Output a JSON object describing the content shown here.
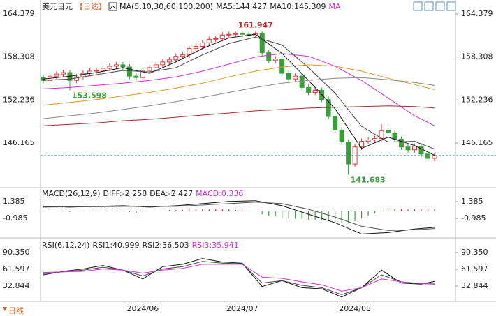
{
  "chart_data": [
    {
      "type": "candlestick",
      "header": [
        {
          "text": "美元日元",
          "color": "#222"
        },
        {
          "text": "【日线】",
          "color": "#e06020"
        },
        {
          "text": "MA(5,10,30,60,100,200)",
          "color": "#222"
        },
        {
          "text": "MA5:144.427",
          "color": "#222"
        },
        {
          "text": "MA10:145.309",
          "color": "#222"
        },
        {
          "text": "MA",
          "color": "#cc33cc"
        }
      ],
      "footer": "日线",
      "categories": [
        null,
        null,
        null,
        null,
        null,
        null,
        null,
        null,
        null,
        null,
        null,
        null,
        null,
        null,
        null,
        "2024/06",
        null,
        null,
        null,
        null,
        null,
        null,
        null,
        null,
        null,
        null,
        null,
        null,
        null,
        null,
        "2024/07",
        null,
        null,
        null,
        null,
        null,
        null,
        null,
        null,
        null,
        null,
        null,
        null,
        null,
        null,
        null,
        null,
        "2024/08",
        null,
        null,
        null,
        null,
        null,
        null,
        null,
        null,
        null,
        null,
        null,
        null
      ],
      "open": [
        155.4,
        155.0,
        155.6,
        155.9,
        156.1,
        155.0,
        155.5,
        156.0,
        156.3,
        156.4,
        156.7,
        157.0,
        157.2,
        156.9,
        155.6,
        155.4,
        156.4,
        156.8,
        157.2,
        157.6,
        157.9,
        158.4,
        158.6,
        159.5,
        159.8,
        160.3,
        160.8,
        160.9,
        161.4,
        161.5,
        161.6,
        161.5,
        161.3,
        161.6,
        158.9,
        157.8,
        158.0,
        156.0,
        155.2,
        155.6,
        154.0,
        153.3,
        153.6,
        152.3,
        149.9,
        148.0,
        146.3,
        143.2,
        145.6,
        146.4,
        146.6,
        146.8,
        147.9,
        147.6,
        146.7,
        145.6,
        145.2,
        145.7,
        144.6,
        144.0
      ],
      "high": [
        155.8,
        156.0,
        156.3,
        156.5,
        156.5,
        155.9,
        156.4,
        156.7,
        156.8,
        157.1,
        157.4,
        157.6,
        157.6,
        157.3,
        156.0,
        156.8,
        157.2,
        157.6,
        158.0,
        158.3,
        158.8,
        159.0,
        159.9,
        160.2,
        160.7,
        161.2,
        161.3,
        161.8,
        161.9,
        161.9,
        161.947,
        161.9,
        161.9,
        161.9,
        159.3,
        158.4,
        158.4,
        156.4,
        156.0,
        156.0,
        154.4,
        154.0,
        154.0,
        152.7,
        150.3,
        148.4,
        146.7,
        146.0,
        146.8,
        147.0,
        147.2,
        148.8,
        148.3,
        148.0,
        147.1,
        146.0,
        146.1,
        146.1,
        145.0,
        144.8
      ],
      "low": [
        154.6,
        154.6,
        155.2,
        155.5,
        153.598,
        154.6,
        155.1,
        155.6,
        155.9,
        156.0,
        156.3,
        156.6,
        156.5,
        155.2,
        155.0,
        155.0,
        156.0,
        156.4,
        156.8,
        157.2,
        157.5,
        158.0,
        158.2,
        159.1,
        159.4,
        159.9,
        160.4,
        160.5,
        161.0,
        161.1,
        161.1,
        160.9,
        160.9,
        158.5,
        157.4,
        157.4,
        155.6,
        154.8,
        154.8,
        153.6,
        152.9,
        152.9,
        151.9,
        149.5,
        147.6,
        145.9,
        141.683,
        142.8,
        145.2,
        146.0,
        146.2,
        146.4,
        147.2,
        146.3,
        145.2,
        144.8,
        144.8,
        144.2,
        143.6,
        143.6
      ],
      "close": [
        155.0,
        155.6,
        155.9,
        156.1,
        155.0,
        155.5,
        156.0,
        156.3,
        156.4,
        156.7,
        157.0,
        157.2,
        156.9,
        155.6,
        155.4,
        156.4,
        156.8,
        157.2,
        157.6,
        157.9,
        158.4,
        158.6,
        159.5,
        159.8,
        160.3,
        160.8,
        160.9,
        161.4,
        161.5,
        161.6,
        161.5,
        161.3,
        161.6,
        158.9,
        157.8,
        158.0,
        156.0,
        155.2,
        155.6,
        154.0,
        153.3,
        153.6,
        152.3,
        149.9,
        148.0,
        146.3,
        143.2,
        145.6,
        146.4,
        146.6,
        146.8,
        147.9,
        147.6,
        146.7,
        145.6,
        145.2,
        145.7,
        144.6,
        144.0,
        144.4
      ],
      "up_color": "#e03a3a",
      "down_color": "#3a9e3a",
      "last_line_color": "#3a9ad9",
      "series": [
        {
          "color": "#111",
          "x": [
            0,
            4,
            8,
            12,
            16,
            20,
            24,
            28,
            32,
            36,
            40,
            44,
            48,
            52,
            56,
            59
          ],
          "values": [
            155.2,
            155.6,
            156.1,
            156.8,
            156.0,
            157.6,
            159.5,
            161.0,
            161.5,
            158.8,
            155.0,
            151.0,
            145.4,
            147.0,
            145.8,
            144.427
          ]
        },
        {
          "color": "#444",
          "x": [
            0,
            4,
            8,
            12,
            16,
            20,
            24,
            28,
            32,
            36,
            40,
            44,
            48,
            52,
            56,
            59
          ],
          "values": [
            155.0,
            155.2,
            155.8,
            156.4,
            156.2,
            156.8,
            158.6,
            160.2,
            161.1,
            160.0,
            156.8,
            153.2,
            148.5,
            146.3,
            146.4,
            145.309
          ]
        },
        {
          "color": "#cc33cc",
          "x": [
            0,
            4,
            8,
            12,
            16,
            20,
            24,
            28,
            32,
            36,
            40,
            44,
            48,
            52,
            56,
            59
          ],
          "values": [
            153.8,
            154.0,
            154.3,
            154.6,
            155.0,
            155.5,
            156.3,
            157.3,
            158.3,
            158.8,
            158.4,
            157.0,
            155.0,
            152.5,
            150.0,
            148.6
          ]
        },
        {
          "color": "#d99a2b",
          "x": [
            0,
            4,
            8,
            12,
            16,
            20,
            24,
            28,
            32,
            36,
            40,
            44,
            48,
            52,
            56,
            59
          ],
          "values": [
            151.5,
            151.9,
            152.3,
            152.8,
            153.3,
            153.9,
            154.6,
            155.5,
            156.3,
            156.9,
            157.2,
            157.0,
            156.3,
            155.3,
            154.4,
            153.7
          ]
        },
        {
          "color": "#8a8a8a",
          "x": [
            0,
            4,
            8,
            12,
            16,
            20,
            24,
            28,
            32,
            36,
            40,
            44,
            48,
            52,
            56,
            59
          ],
          "values": [
            149.6,
            150.0,
            150.4,
            150.9,
            151.4,
            152.0,
            152.6,
            153.3,
            154.0,
            154.6,
            155.0,
            155.3,
            155.4,
            155.1,
            154.7,
            154.3
          ]
        },
        {
          "color": "#a03030",
          "x": [
            0,
            4,
            8,
            12,
            16,
            20,
            24,
            28,
            32,
            36,
            40,
            44,
            48,
            52,
            56,
            59
          ],
          "values": [
            148.6,
            148.8,
            149.0,
            149.3,
            149.5,
            149.8,
            150.1,
            150.4,
            150.7,
            150.9,
            151.1,
            151.2,
            151.3,
            151.4,
            151.3,
            151.1
          ]
        }
      ],
      "annotations": [
        {
          "x": 30,
          "value": 161.947,
          "color": "#b03030"
        },
        {
          "x": 4,
          "value": 153.598,
          "color": "#3a9e3a"
        },
        {
          "x": 46,
          "value": 141.683,
          "color": "#3a9e3a"
        }
      ],
      "ylim": [
        139.96,
        165.56
      ],
      "yticks": [
        164.379,
        158.308,
        152.236,
        146.165
      ]
    },
    {
      "type": "macd",
      "header": [
        {
          "text": "MACD(26,12,9)",
          "color": "#222"
        },
        {
          "text": "DIFF:-2.258",
          "color": "#222"
        },
        {
          "text": "DEA:-2.427",
          "color": "#222"
        },
        {
          "text": "MACD:0.336",
          "color": "#cc33cc"
        }
      ],
      "series": [
        {
          "color": "#111",
          "x": [
            0,
            4,
            8,
            12,
            16,
            20,
            24,
            28,
            32,
            36,
            40,
            44,
            48,
            52,
            56,
            59
          ],
          "values": [
            0.7,
            0.6,
            0.7,
            0.8,
            0.6,
            0.8,
            1.1,
            1.4,
            1.5,
            0.8,
            -0.4,
            -1.6,
            -3.2,
            -3.0,
            -2.5,
            -2.258
          ]
        },
        {
          "color": "#555",
          "x": [
            0,
            4,
            8,
            12,
            16,
            20,
            24,
            28,
            32,
            36,
            40,
            44,
            48,
            52,
            56,
            59
          ],
          "values": [
            0.6,
            0.65,
            0.65,
            0.7,
            0.7,
            0.7,
            0.9,
            1.1,
            1.3,
            1.1,
            0.3,
            -0.8,
            -2.1,
            -2.7,
            -2.6,
            -2.427
          ]
        }
      ],
      "hist": [
        0.1,
        0.1,
        0.1,
        0.1,
        -0.1,
        0.0,
        0.1,
        0.1,
        0.1,
        0.1,
        0.1,
        0.1,
        0.1,
        -0.1,
        -0.2,
        -0.1,
        0.0,
        0.1,
        0.1,
        0.2,
        0.2,
        0.2,
        0.3,
        0.3,
        0.3,
        0.3,
        0.3,
        0.3,
        0.3,
        0.2,
        0.2,
        0.1,
        0.0,
        -0.4,
        -0.6,
        -0.7,
        -0.9,
        -1.0,
        -1.0,
        -1.1,
        -1.2,
        -1.2,
        -1.3,
        -1.4,
        -1.5,
        -1.6,
        -1.7,
        -1.4,
        -1.0,
        -0.6,
        -0.3,
        0.1,
        0.3,
        0.3,
        0.3,
        0.3,
        0.3,
        0.3,
        0.3,
        0.336
      ],
      "up_color": "#e03a3a",
      "down_color": "#3a9e3a",
      "ylim": [
        -3.65,
        3.06
      ],
      "yticks": [
        1.385,
        -0.985
      ]
    },
    {
      "type": "line",
      "header": [
        {
          "text": "RSI(6,12,24)",
          "color": "#222"
        },
        {
          "text": "RSI1:40.999",
          "color": "#222"
        },
        {
          "text": "RSI2:36.503",
          "color": "#222"
        },
        {
          "text": "RSI3:35.941",
          "color": "#cc33cc"
        }
      ],
      "series": [
        {
          "color": "#111",
          "x": [
            0,
            3,
            6,
            9,
            12,
            15,
            18,
            21,
            24,
            27,
            30,
            33,
            36,
            39,
            42,
            45,
            48,
            51,
            54,
            57,
            59
          ],
          "values": [
            52,
            58,
            62,
            68,
            60,
            45,
            66,
            70,
            80,
            74,
            72,
            32,
            42,
            30,
            28,
            14,
            30,
            60,
            38,
            36,
            40.999
          ]
        },
        {
          "color": "#444",
          "x": [
            0,
            3,
            6,
            9,
            12,
            15,
            18,
            21,
            24,
            27,
            30,
            33,
            36,
            39,
            42,
            45,
            48,
            51,
            54,
            57,
            59
          ],
          "values": [
            54,
            57,
            60,
            65,
            60,
            50,
            62,
            66,
            75,
            72,
            71,
            38,
            42,
            34,
            30,
            18,
            30,
            52,
            40,
            37,
            36.503
          ]
        },
        {
          "color": "#cc33cc",
          "x": [
            0,
            3,
            6,
            9,
            12,
            15,
            18,
            21,
            24,
            27,
            30,
            33,
            36,
            39,
            42,
            45,
            48,
            51,
            54,
            57,
            59
          ],
          "values": [
            56,
            57,
            58,
            62,
            60,
            55,
            60,
            63,
            70,
            70,
            70,
            48,
            46,
            40,
            35,
            24,
            30,
            45,
            40,
            37,
            35.941
          ]
        }
      ],
      "ylim": [
        6.5,
        113.0
      ],
      "yticks": [
        {
          "value": 90.35,
          "label": "90.350"
        },
        61.597,
        32.844
      ]
    }
  ]
}
